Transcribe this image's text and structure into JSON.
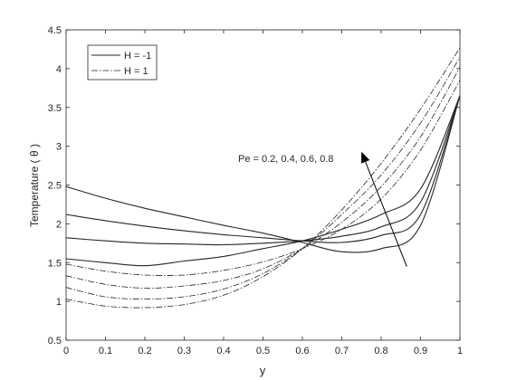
{
  "chart_data": {
    "type": "line",
    "xlabel": "y",
    "ylabel": "Temperature ( θ )",
    "xlim": [
      0,
      1
    ],
    "ylim": [
      0.5,
      4.5
    ],
    "xticks": [
      0,
      0.1,
      0.2,
      0.3,
      0.4,
      0.5,
      0.6,
      0.7,
      0.8,
      0.9,
      1
    ],
    "yticks": [
      0.5,
      1,
      1.5,
      2,
      2.5,
      3,
      3.5,
      4,
      4.5
    ],
    "grid": false,
    "legend": {
      "placement": "top-left",
      "entries": [
        {
          "label": "H = -1",
          "style": "solid"
        },
        {
          "label": "H = 1",
          "style": "dashdot"
        }
      ]
    },
    "annotation": {
      "text": "Pe = 0.2, 0.4, 0.6, 0.8",
      "arrow_from": [
        0.865,
        1.45
      ],
      "arrow_to": [
        0.75,
        2.93
      ]
    },
    "x": [
      0,
      0.1,
      0.2,
      0.3,
      0.4,
      0.5,
      0.6,
      0.7,
      0.8,
      0.9,
      1
    ],
    "series": [
      {
        "group": "H = -1",
        "Pe": 0.2,
        "style": "solid",
        "values": [
          1.82,
          1.78,
          1.75,
          1.74,
          1.73,
          1.75,
          1.78,
          1.84,
          1.96,
          2.28,
          3.65
        ]
      },
      {
        "group": "H = -1",
        "Pe": 0.4,
        "style": "solid",
        "values": [
          1.55,
          1.5,
          1.46,
          1.52,
          1.58,
          1.68,
          1.78,
          1.93,
          2.12,
          2.45,
          3.65
        ]
      },
      {
        "group": "H = -1",
        "Pe": 0.6,
        "style": "solid",
        "values": [
          2.12,
          2.04,
          1.97,
          1.91,
          1.86,
          1.82,
          1.78,
          1.76,
          1.85,
          2.12,
          3.65
        ]
      },
      {
        "group": "H = -1",
        "Pe": 0.8,
        "style": "solid",
        "values": [
          2.48,
          2.33,
          2.2,
          2.09,
          1.98,
          1.88,
          1.76,
          1.64,
          1.68,
          1.98,
          3.65
        ]
      },
      {
        "group": "H = 1",
        "Pe": 0.2,
        "style": "dashdot",
        "values": [
          1.48,
          1.39,
          1.34,
          1.34,
          1.4,
          1.51,
          1.68,
          1.93,
          2.32,
          2.95,
          3.85
        ]
      },
      {
        "group": "H = 1",
        "Pe": 0.4,
        "style": "dashdot",
        "values": [
          1.33,
          1.22,
          1.17,
          1.2,
          1.27,
          1.42,
          1.68,
          2.02,
          2.48,
          3.12,
          4.02
        ]
      },
      {
        "group": "H = 1",
        "Pe": 0.6,
        "style": "dashdot",
        "values": [
          1.18,
          1.06,
          1.03,
          1.06,
          1.16,
          1.36,
          1.68,
          2.12,
          2.63,
          3.3,
          4.15
        ]
      },
      {
        "group": "H = 1",
        "Pe": 0.8,
        "style": "dashdot",
        "values": [
          1.03,
          0.94,
          0.92,
          0.96,
          1.08,
          1.32,
          1.68,
          2.18,
          2.78,
          3.48,
          4.27
        ]
      }
    ]
  }
}
